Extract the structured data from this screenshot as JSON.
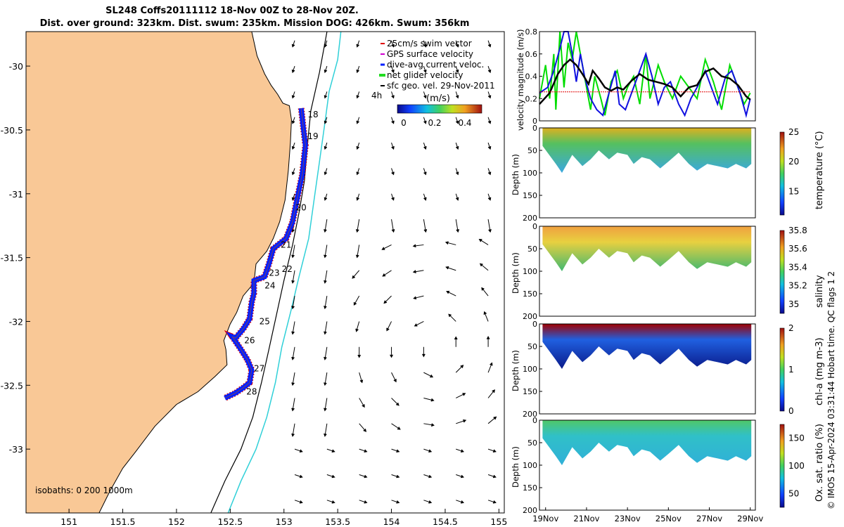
{
  "figure": {
    "title_line1": "SL248 Coffs20111112 18-Nov 00Z to 28-Nov 20Z.",
    "title_line2": "Dist. over ground: 323km. Dist. swum: 235km. Mission DOG: 426km. Swum: 356km",
    "copyright": "© IMOS 15-Apr-2024 03:31:44 Hobart time. QC flags 1  2"
  },
  "chart_data": [
    {
      "type": "scatter",
      "panel": "map",
      "x_ticks": [
        151,
        151.5,
        152,
        152.5,
        153,
        153.5,
        154,
        154.5,
        155
      ],
      "y_ticks": [
        -30,
        -30.5,
        -31,
        -31.5,
        -32,
        -32.5,
        -33
      ],
      "xlim": [
        150.6,
        155.05
      ],
      "ylim": [
        -33.5,
        -29.73
      ],
      "legend": [
        "25cm/s swim vector",
        "GPS surface velocity",
        "dive-avg current veloc.",
        "net glider velocity",
        "sfc geo. vel. 29-Nov-2011"
      ],
      "legend_colors": [
        "#e00000",
        "#d000d0",
        "#0020ff",
        "#22dd22",
        "#000000"
      ],
      "colorbar_label": "(m/s)",
      "colorbar_ticks": [
        "0",
        "0.2",
        "0.4"
      ],
      "isobath_label": "isobaths: 0   200 1000m",
      "offshore_label": "4h",
      "day_labels": [
        {
          "label": "18",
          "lon": 153.22,
          "lat": -30.38
        },
        {
          "label": "19",
          "lon": 153.22,
          "lat": -30.55
        },
        {
          "label": "20",
          "lon": 153.11,
          "lat": -31.11
        },
        {
          "label": "21",
          "lon": 152.97,
          "lat": -31.4
        },
        {
          "label": "22",
          "lon": 152.98,
          "lat": -31.59
        },
        {
          "label": "23",
          "lon": 152.86,
          "lat": -31.62
        },
        {
          "label": "24",
          "lon": 152.82,
          "lat": -31.72
        },
        {
          "label": "25",
          "lon": 152.77,
          "lat": -32.0
        },
        {
          "label": "26",
          "lon": 152.63,
          "lat": -32.15
        },
        {
          "label": "27",
          "lon": 152.72,
          "lat": -32.37
        },
        {
          "label": "28",
          "lon": 152.65,
          "lat": -32.55
        }
      ],
      "track": [
        [
          153.16,
          -30.33
        ],
        [
          153.18,
          -30.48
        ],
        [
          153.2,
          -30.62
        ],
        [
          153.17,
          -30.85
        ],
        [
          153.12,
          -31.05
        ],
        [
          153.08,
          -31.22
        ],
        [
          153.02,
          -31.35
        ],
        [
          152.9,
          -31.43
        ],
        [
          152.86,
          -31.55
        ],
        [
          152.82,
          -31.65
        ],
        [
          152.72,
          -31.68
        ],
        [
          152.72,
          -31.78
        ],
        [
          152.7,
          -31.85
        ],
        [
          152.68,
          -31.98
        ],
        [
          152.62,
          -32.06
        ],
        [
          152.55,
          -32.13
        ],
        [
          152.52,
          -32.12
        ],
        [
          152.6,
          -32.22
        ],
        [
          152.66,
          -32.3
        ],
        [
          152.7,
          -32.38
        ],
        [
          152.68,
          -32.48
        ],
        [
          152.62,
          -32.52
        ],
        [
          152.55,
          -32.56
        ],
        [
          152.45,
          -32.6
        ]
      ],
      "coastline": [
        [
          152.7,
          -29.73
        ],
        [
          152.75,
          -29.92
        ],
        [
          152.82,
          -30.06
        ],
        [
          152.88,
          -30.15
        ],
        [
          152.94,
          -30.22
        ],
        [
          152.99,
          -30.29
        ],
        [
          153.05,
          -30.31
        ],
        [
          153.07,
          -30.42
        ],
        [
          153.06,
          -30.6
        ],
        [
          153.04,
          -30.82
        ],
        [
          153.01,
          -31.05
        ],
        [
          152.96,
          -31.22
        ],
        [
          152.9,
          -31.35
        ],
        [
          152.84,
          -31.45
        ],
        [
          152.74,
          -31.55
        ],
        [
          152.72,
          -31.7
        ],
        [
          152.62,
          -31.8
        ],
        [
          152.56,
          -31.93
        ],
        [
          152.5,
          -32.02
        ],
        [
          152.44,
          -32.15
        ],
        [
          152.46,
          -32.22
        ],
        [
          152.47,
          -32.34
        ],
        [
          152.36,
          -32.43
        ],
        [
          152.2,
          -32.55
        ],
        [
          152.0,
          -32.65
        ],
        [
          151.8,
          -32.82
        ],
        [
          151.62,
          -33.02
        ],
        [
          151.5,
          -33.15
        ],
        [
          151.38,
          -33.33
        ],
        [
          151.28,
          -33.5
        ]
      ],
      "isobath_200": [
        [
          153.4,
          -29.73
        ],
        [
          153.33,
          -30.05
        ],
        [
          153.25,
          -30.35
        ],
        [
          153.22,
          -30.6
        ],
        [
          153.19,
          -30.9
        ],
        [
          153.14,
          -31.15
        ],
        [
          153.08,
          -31.4
        ],
        [
          153.0,
          -31.68
        ],
        [
          152.93,
          -31.95
        ],
        [
          152.86,
          -32.22
        ],
        [
          152.79,
          -32.48
        ],
        [
          152.71,
          -32.75
        ],
        [
          152.6,
          -33.0
        ],
        [
          152.45,
          -33.25
        ],
        [
          152.32,
          -33.5
        ]
      ],
      "isobath_1000": [
        [
          153.53,
          -29.73
        ],
        [
          153.5,
          -29.95
        ],
        [
          153.42,
          -30.2
        ],
        [
          153.38,
          -30.45
        ],
        [
          153.33,
          -30.75
        ],
        [
          153.28,
          -31.05
        ],
        [
          153.23,
          -31.35
        ],
        [
          153.14,
          -31.65
        ],
        [
          153.07,
          -31.9
        ],
        [
          152.98,
          -32.2
        ],
        [
          152.92,
          -32.48
        ],
        [
          152.84,
          -32.75
        ],
        [
          152.74,
          -33.0
        ],
        [
          152.6,
          -33.25
        ],
        [
          152.48,
          -33.5
        ]
      ],
      "geo_velocity_vectors": "gridded field, ~0.15-0.5 m/s, southward along shelf, eddy east of 154E near -32.2"
    },
    {
      "type": "line",
      "panel": "velocity",
      "ylabel": "velocity magnitude (m/s)",
      "ylim": [
        0,
        0.8
      ],
      "y_ticks": [
        "0",
        "0.2",
        "0.4",
        "0.6",
        "0.8"
      ],
      "xlim": [
        18.7,
        29.25
      ],
      "series": [
        {
          "color": "#00dd00",
          "values": [
            [
              18.7,
              0.2
            ],
            [
              19.0,
              0.5
            ],
            [
              19.2,
              0.2
            ],
            [
              19.4,
              0.6
            ],
            [
              19.5,
              0.1
            ],
            [
              19.7,
              0.8
            ],
            [
              19.9,
              0.3
            ],
            [
              20.1,
              0.7
            ],
            [
              20.3,
              0.55
            ],
            [
              20.5,
              0.8
            ],
            [
              20.7,
              0.6
            ],
            [
              21.0,
              0.3
            ],
            [
              21.2,
              0.1
            ],
            [
              21.4,
              0.4
            ],
            [
              21.7,
              0.2
            ],
            [
              21.9,
              0.05
            ],
            [
              22.2,
              0.35
            ],
            [
              22.5,
              0.45
            ],
            [
              22.8,
              0.2
            ],
            [
              23.0,
              0.3
            ],
            [
              23.3,
              0.4
            ],
            [
              23.6,
              0.15
            ],
            [
              23.9,
              0.6
            ],
            [
              24.1,
              0.2
            ],
            [
              24.5,
              0.5
            ],
            [
              24.8,
              0.35
            ],
            [
              25.2,
              0.2
            ],
            [
              25.6,
              0.4
            ],
            [
              26.0,
              0.3
            ],
            [
              26.4,
              0.2
            ],
            [
              26.8,
              0.55
            ],
            [
              27.2,
              0.35
            ],
            [
              27.6,
              0.1
            ],
            [
              28.0,
              0.5
            ],
            [
              28.4,
              0.3
            ],
            [
              28.7,
              0.15
            ],
            [
              29.0,
              0.25
            ]
          ]
        },
        {
          "color": "#1010e0",
          "values": [
            [
              18.7,
              0.25
            ],
            [
              19.1,
              0.3
            ],
            [
              19.4,
              0.45
            ],
            [
              19.7,
              0.65
            ],
            [
              19.9,
              0.8
            ],
            [
              20.1,
              0.8
            ],
            [
              20.3,
              0.6
            ],
            [
              20.5,
              0.35
            ],
            [
              20.7,
              0.6
            ],
            [
              20.9,
              0.4
            ],
            [
              21.2,
              0.2
            ],
            [
              21.5,
              0.1
            ],
            [
              21.8,
              0.05
            ],
            [
              22.1,
              0.25
            ],
            [
              22.4,
              0.45
            ],
            [
              22.6,
              0.15
            ],
            [
              22.9,
              0.1
            ],
            [
              23.3,
              0.3
            ],
            [
              23.6,
              0.45
            ],
            [
              23.9,
              0.6
            ],
            [
              24.2,
              0.4
            ],
            [
              24.5,
              0.15
            ],
            [
              24.8,
              0.3
            ],
            [
              25.1,
              0.35
            ],
            [
              25.5,
              0.15
            ],
            [
              25.8,
              0.05
            ],
            [
              26.1,
              0.2
            ],
            [
              26.4,
              0.3
            ],
            [
              26.8,
              0.45
            ],
            [
              27.1,
              0.3
            ],
            [
              27.4,
              0.15
            ],
            [
              27.8,
              0.4
            ],
            [
              28.1,
              0.45
            ],
            [
              28.5,
              0.25
            ],
            [
              28.8,
              0.05
            ],
            [
              29.0,
              0.2
            ]
          ]
        },
        {
          "color": "#000000",
          "values": [
            [
              18.7,
              0.15
            ],
            [
              19.2,
              0.25
            ],
            [
              19.6,
              0.42
            ],
            [
              19.9,
              0.5
            ],
            [
              20.2,
              0.55
            ],
            [
              20.5,
              0.5
            ],
            [
              20.8,
              0.42
            ],
            [
              21.1,
              0.33
            ],
            [
              21.3,
              0.45
            ],
            [
              21.6,
              0.38
            ],
            [
              21.9,
              0.3
            ],
            [
              22.2,
              0.27
            ],
            [
              22.5,
              0.3
            ],
            [
              22.8,
              0.28
            ],
            [
              23.2,
              0.36
            ],
            [
              23.6,
              0.42
            ],
            [
              24.0,
              0.37
            ],
            [
              24.4,
              0.35
            ],
            [
              24.8,
              0.33
            ],
            [
              25.2,
              0.3
            ],
            [
              25.6,
              0.22
            ],
            [
              26.0,
              0.3
            ],
            [
              26.4,
              0.32
            ],
            [
              26.8,
              0.44
            ],
            [
              27.2,
              0.47
            ],
            [
              27.6,
              0.4
            ],
            [
              28.0,
              0.38
            ],
            [
              28.4,
              0.32
            ],
            [
              28.8,
              0.22
            ],
            [
              29.0,
              0.19
            ]
          ]
        },
        {
          "color": "#e00000",
          "values": [
            [
              18.7,
              0.26
            ],
            [
              29.0,
              0.26
            ]
          ]
        }
      ]
    },
    {
      "type": "heatmap",
      "panel": "temperature",
      "ylabel": "Depth (m)",
      "colorbar_label": "temperature (°C)",
      "clim": [
        11,
        25
      ],
      "colorbar_ticks": [
        "15",
        "20",
        "25"
      ],
      "y_ticks": [
        "0",
        "50",
        "100",
        "150",
        "200"
      ],
      "colors": {
        "top": "#ddb020",
        "mid": "#55c060",
        "deep": "#3aa8e0"
      },
      "max_depth_profile": [
        [
          18.7,
          40
        ],
        [
          19.5,
          80
        ],
        [
          19.8,
          100
        ],
        [
          20.3,
          60
        ],
        [
          20.8,
          85
        ],
        [
          21.2,
          70
        ],
        [
          21.6,
          50
        ],
        [
          22.1,
          70
        ],
        [
          22.5,
          55
        ],
        [
          23.0,
          60
        ],
        [
          23.3,
          80
        ],
        [
          23.7,
          65
        ],
        [
          24.1,
          70
        ],
        [
          24.6,
          90
        ],
        [
          25.0,
          75
        ],
        [
          25.5,
          55
        ],
        [
          26.0,
          80
        ],
        [
          26.4,
          95
        ],
        [
          26.9,
          80
        ],
        [
          27.4,
          85
        ],
        [
          27.9,
          90
        ],
        [
          28.3,
          80
        ],
        [
          28.8,
          90
        ],
        [
          29.05,
          80
        ]
      ]
    },
    {
      "type": "heatmap",
      "panel": "salinity",
      "ylabel": "Depth (m)",
      "colorbar_label": "salinity",
      "clim": [
        34.9,
        35.8
      ],
      "colorbar_ticks": [
        "35",
        "35.2",
        "35.4",
        "35.6",
        "35.8"
      ],
      "y_ticks": [
        "0",
        "50",
        "100",
        "150",
        "200"
      ],
      "colors": {
        "top": "#f0a040",
        "mid": "#e8d040",
        "deep": "#40b870"
      }
    },
    {
      "type": "heatmap",
      "panel": "chl-a",
      "ylabel": "Depth (m)",
      "colorbar_label": "chl-a (mg m-3)",
      "clim": [
        0,
        2
      ],
      "colorbar_ticks": [
        "0",
        "1",
        "2"
      ],
      "y_ticks": [
        "0",
        "50",
        "100",
        "150",
        "200"
      ],
      "colors": {
        "top": "#a00000",
        "mid": "#2060e0",
        "deep": "#0a1a8a"
      }
    },
    {
      "type": "heatmap",
      "panel": "oxygen",
      "ylabel": "Depth (m)",
      "colorbar_label": "Ox. sat. ratio (%)",
      "clim": [
        25,
        175
      ],
      "colorbar_ticks": [
        "50",
        "100",
        "150"
      ],
      "y_ticks": [
        "0",
        "50",
        "100",
        "150",
        "200"
      ],
      "x_ticks": [
        "19Nov",
        "21Nov",
        "23Nov",
        "25Nov",
        "27Nov",
        "29Nov"
      ],
      "x_tick_days": [
        19,
        21,
        23,
        25,
        27,
        29
      ],
      "colors": {
        "top": "#50c868",
        "mid": "#30c0c8",
        "deep": "#30b0d8"
      }
    }
  ]
}
